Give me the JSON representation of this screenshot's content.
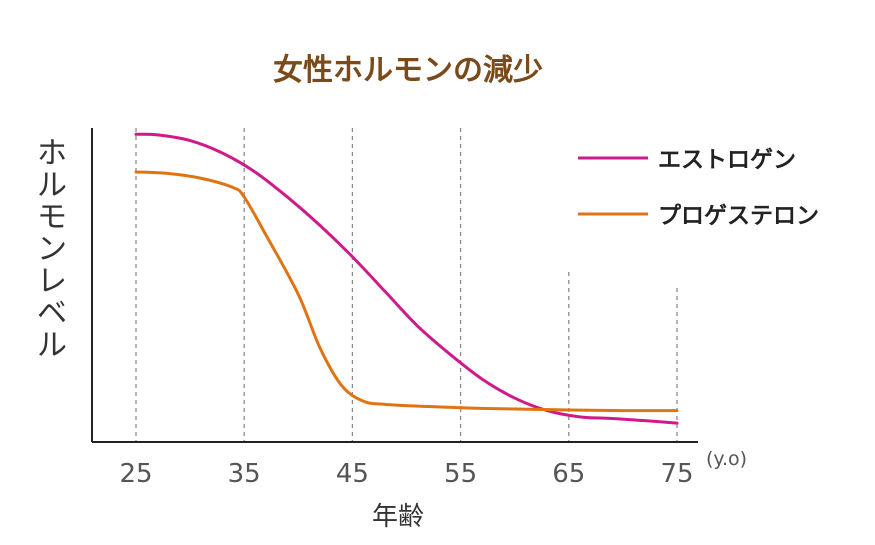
{
  "chart_data": {
    "type": "line",
    "title": "女性ホルモンの減少",
    "ylabel": "ホルモンレベル",
    "xlabel": "年齢",
    "x_unit": "(y.o)",
    "x_ticks": [
      "25",
      "35",
      "45",
      "55",
      "65",
      "75"
    ],
    "xlim": [
      25,
      75
    ],
    "ylim": [
      0,
      100
    ],
    "grid": "vertical dashed",
    "legend_position": "top-right",
    "series": [
      {
        "name": "エストロゲン",
        "color": "#cf1a8a",
        "x": [
          25,
          27,
          30,
          33,
          36,
          39,
          42,
          45,
          48,
          51,
          54,
          57,
          60,
          63,
          66,
          69,
          72,
          75
        ],
        "y": [
          98,
          97.8,
          96,
          92,
          86,
          78,
          69,
          59,
          48,
          37,
          28,
          20,
          14,
          10,
          8,
          7.5,
          6.8,
          6
        ]
      },
      {
        "name": "プロゲステロン",
        "color": "#e07414",
        "x": [
          25,
          28,
          31,
          34,
          35,
          37,
          40,
          42,
          44,
          46,
          48,
          52,
          56,
          60,
          65,
          70,
          75
        ],
        "y": [
          86,
          85.5,
          84,
          81,
          78,
          66,
          47,
          30,
          18,
          13,
          12,
          11.3,
          10.8,
          10.5,
          10.2,
          10,
          10
        ]
      }
    ]
  }
}
